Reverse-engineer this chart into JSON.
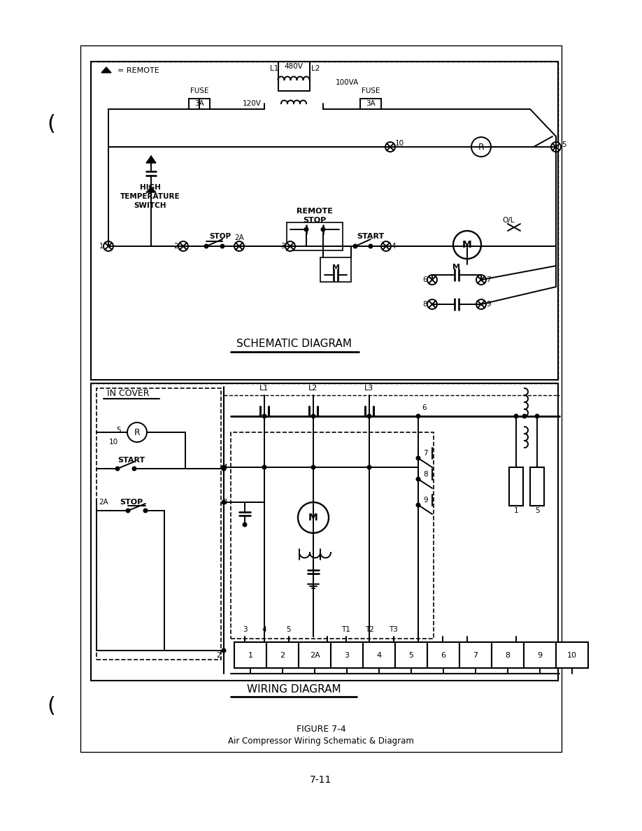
{
  "bg_color": "#ffffff",
  "line_color": "#000000",
  "page_width": 9.18,
  "page_height": 11.88,
  "title": "FIGURE 7-4",
  "subtitle": "Air Compressor Wiring Schematic & Diagram",
  "page_num": "7-11"
}
